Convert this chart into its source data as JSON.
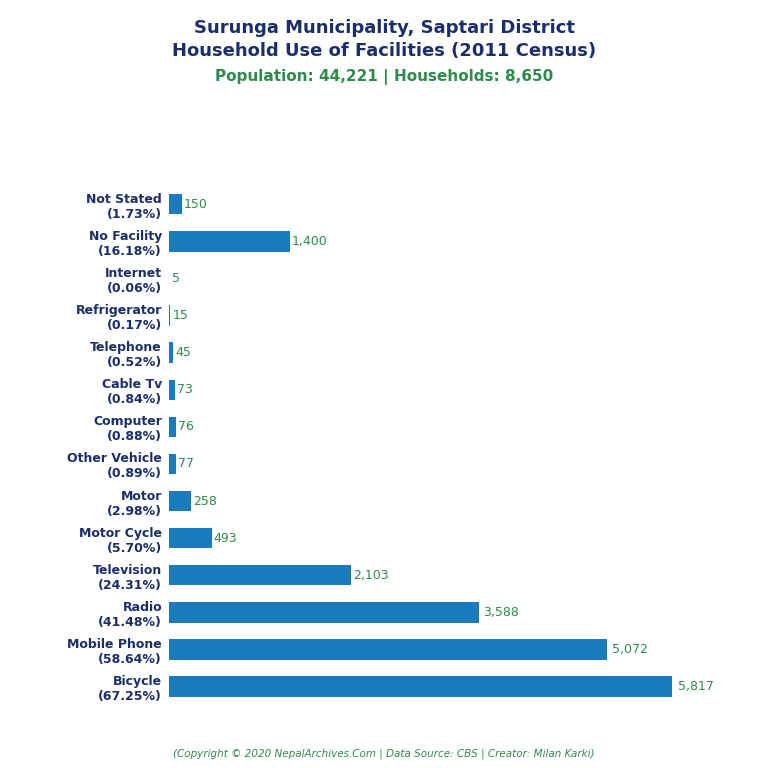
{
  "title_line1": "Surunga Municipality, Saptari District",
  "title_line2": "Household Use of Facilities (2011 Census)",
  "subtitle": "Population: 44,221 | Households: 8,650",
  "footer": "(Copyright © 2020 NepalArchives.Com | Data Source: CBS | Creator: Milan Karki)",
  "categories": [
    "Not Stated\n(1.73%)",
    "No Facility\n(16.18%)",
    "Internet\n(0.06%)",
    "Refrigerator\n(0.17%)",
    "Telephone\n(0.52%)",
    "Cable Tv\n(0.84%)",
    "Computer\n(0.88%)",
    "Other Vehicle\n(0.89%)",
    "Motor\n(2.98%)",
    "Motor Cycle\n(5.70%)",
    "Television\n(24.31%)",
    "Radio\n(41.48%)",
    "Mobile Phone\n(58.64%)",
    "Bicycle\n(67.25%)"
  ],
  "values": [
    150,
    1400,
    5,
    15,
    45,
    73,
    76,
    77,
    258,
    493,
    2103,
    3588,
    5072,
    5817
  ],
  "value_labels": [
    "150",
    "1,400",
    "5",
    "15",
    "45",
    "73",
    "76",
    "77",
    "258",
    "493",
    "2,103",
    "3,588",
    "5,072",
    "5,817"
  ],
  "bar_color": "#1a7bbf",
  "title_color": "#1a2e6e",
  "subtitle_color": "#2e8b4a",
  "value_color": "#2e8b4a",
  "footer_color": "#2e8b4a",
  "background_color": "#ffffff",
  "xlim": [
    0,
    6400
  ],
  "figsize": [
    7.68,
    7.68
  ],
  "dpi": 100
}
